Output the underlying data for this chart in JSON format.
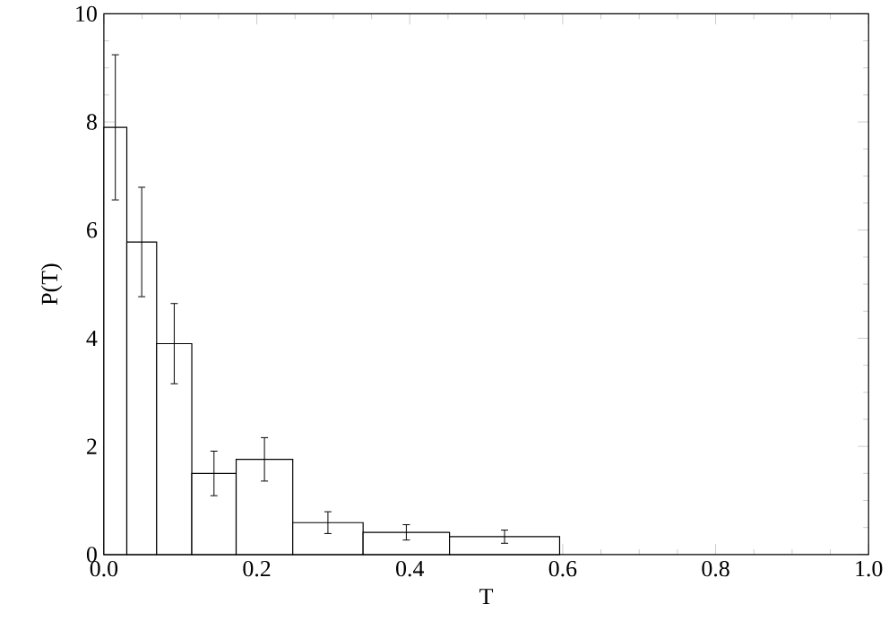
{
  "chart_data": {
    "type": "histogram",
    "xlabel": "T",
    "ylabel": "P(T)",
    "bins": [
      0,
      0.03,
      0.069,
      0.115,
      0.173,
      0.247,
      0.339,
      0.452,
      0.596
    ],
    "values": [
      7.9,
      5.78,
      3.9,
      1.5,
      1.76,
      0.59,
      0.41,
      0.33
    ],
    "errors": [
      1.35,
      1.02,
      0.75,
      0.42,
      0.41,
      0.21,
      0.15,
      0.13
    ],
    "color": "#000000",
    "xlim": [
      0,
      1
    ],
    "ylim": [
      0,
      10
    ],
    "xticks": [
      {
        "value": 0,
        "label": "0.0"
      },
      0.2,
      0.4,
      0.6,
      0.8,
      {
        "value": 1,
        "label": "1.0"
      }
    ],
    "yticks": [
      0,
      2,
      4,
      6,
      8,
      10
    ]
  }
}
